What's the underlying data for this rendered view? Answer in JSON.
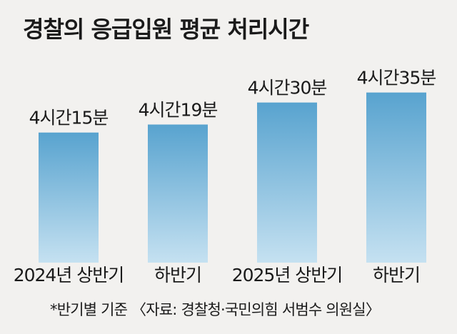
{
  "title": "경찰의 응급입원 평균 처리시간",
  "note": "*반기별 기준 〈자료: 경찰청·국민의힘 서범수 의원실〉",
  "colors": {
    "bar_top": "#58a3cf",
    "bar_bottom": "#c5e1f1",
    "background": "#f2f1ef"
  },
  "chart_data": {
    "type": "bar",
    "categories": [
      "2024년 상반기",
      "하반기",
      "2025년 상반기",
      "하반기"
    ],
    "values": [
      255,
      259,
      270,
      275
    ],
    "value_labels": [
      "4시간15분",
      "4시간19분",
      "4시간30분",
      "4시간35분"
    ],
    "unit": "minutes",
    "title": "경찰의 응급입원 평균 처리시간",
    "xlabel": "",
    "ylabel": "",
    "ylim": [
      190,
      282
    ],
    "grid": false
  }
}
